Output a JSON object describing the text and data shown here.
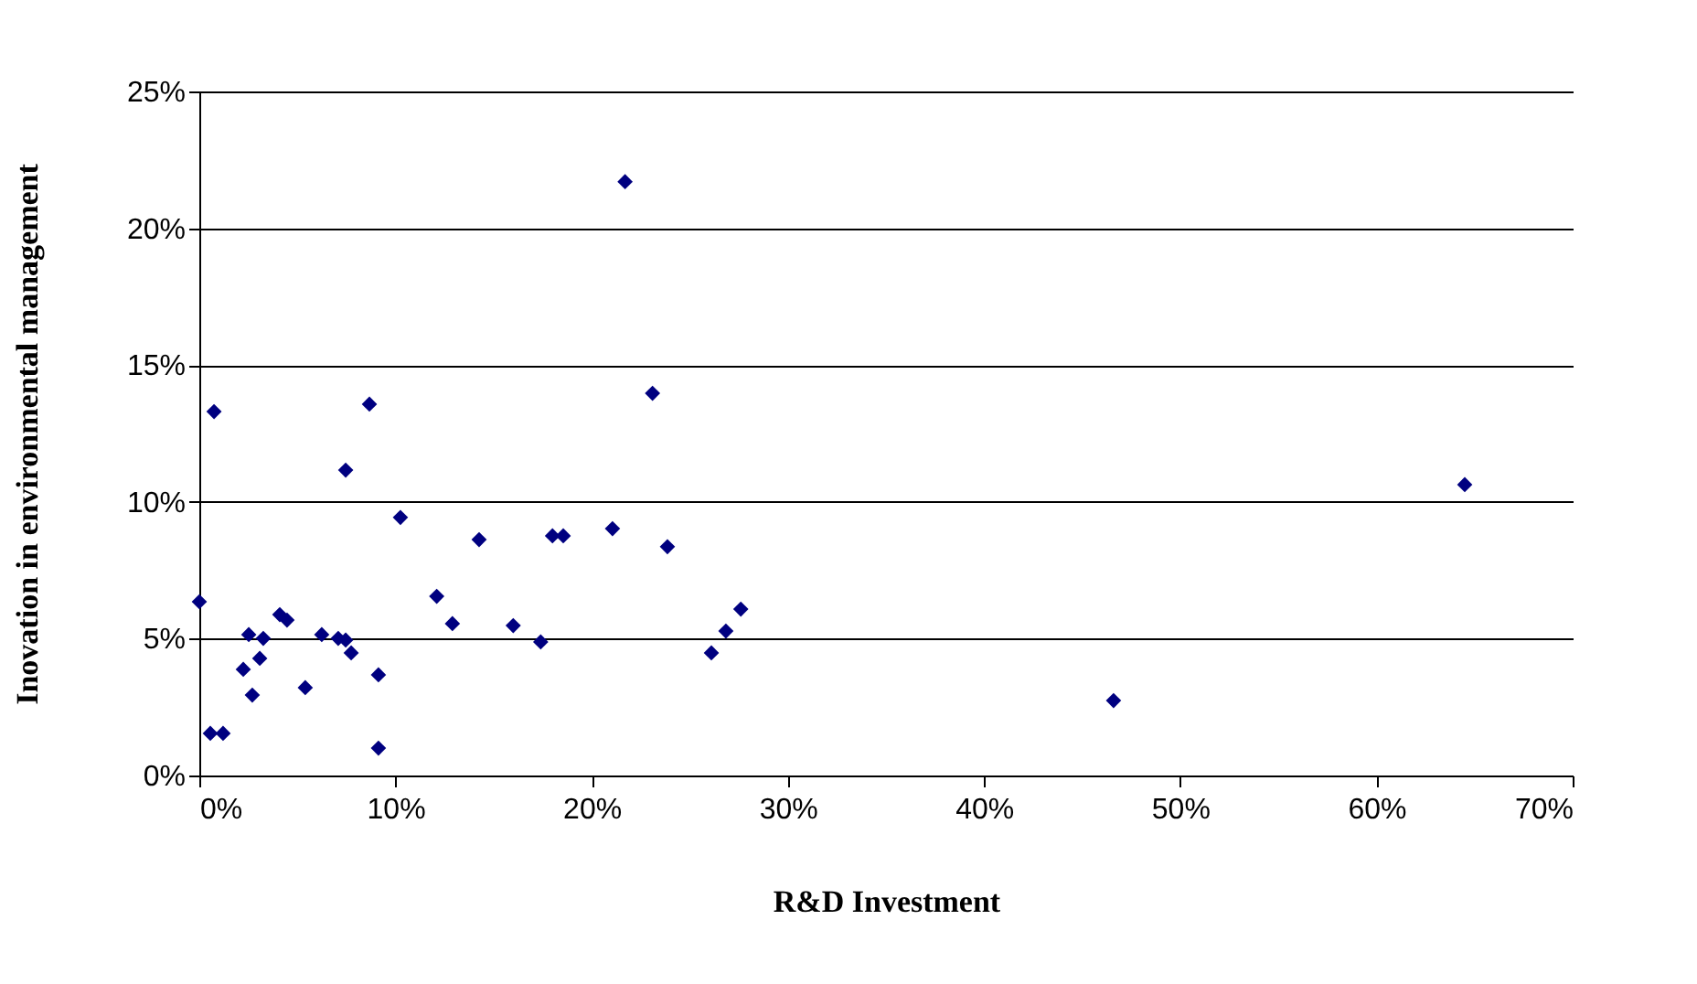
{
  "chart_data": {
    "type": "scatter",
    "xlabel": "R&D Investment",
    "ylabel": "Inovation in environmental management",
    "x": [
      0,
      0.75,
      0.56,
      1.21,
      2.24,
      2.7,
      3.08,
      2.52,
      3.26,
      4.1,
      4.47,
      5.4,
      6.24,
      7.08,
      7.46,
      7.74,
      9.13,
      9.13,
      8.67,
      7.46,
      10.25,
      12.1,
      12.9,
      14.26,
      16.0,
      17.4,
      18.0,
      18.55,
      21.06,
      23.1,
      23.86,
      26.1,
      26.84,
      27.6,
      21.7,
      46.6,
      64.5
    ],
    "series": [
      {
        "color": "#000080",
        "values": [
          6.35,
          13.3,
          1.54,
          1.54,
          3.88,
          2.94,
          4.28,
          5.15,
          5.01,
          5.88,
          5.68,
          3.21,
          5.15,
          5.01,
          4.95,
          4.48,
          3.68,
          1.0,
          13.57,
          11.16,
          9.43,
          6.55,
          5.55,
          8.62,
          5.48,
          4.88,
          8.76,
          8.76,
          9.02,
          13.97,
          8.36,
          4.48,
          5.28,
          6.08,
          21.7,
          2.74,
          10.63
        ]
      }
    ],
    "xlim": [
      0,
      70
    ],
    "ylim": [
      0,
      25
    ],
    "xticks": [
      {
        "value": 0,
        "label": "0%"
      },
      {
        "value": 10,
        "label": "10%"
      },
      {
        "value": 20,
        "label": "20%"
      },
      {
        "value": 30,
        "label": "30%"
      },
      {
        "value": 40,
        "label": "40%"
      },
      {
        "value": 50,
        "label": "50%"
      },
      {
        "value": 60,
        "label": "60%"
      },
      {
        "value": 70,
        "label": "70%"
      }
    ],
    "yticks": [
      {
        "value": 0,
        "label": "0%"
      },
      {
        "value": 5,
        "label": "5%"
      },
      {
        "value": 10,
        "label": "10%"
      },
      {
        "value": 15,
        "label": "15%"
      },
      {
        "value": 20,
        "label": "20%"
      },
      {
        "value": 25,
        "label": "25%"
      }
    ],
    "grid": "y",
    "marker": "diamond"
  }
}
